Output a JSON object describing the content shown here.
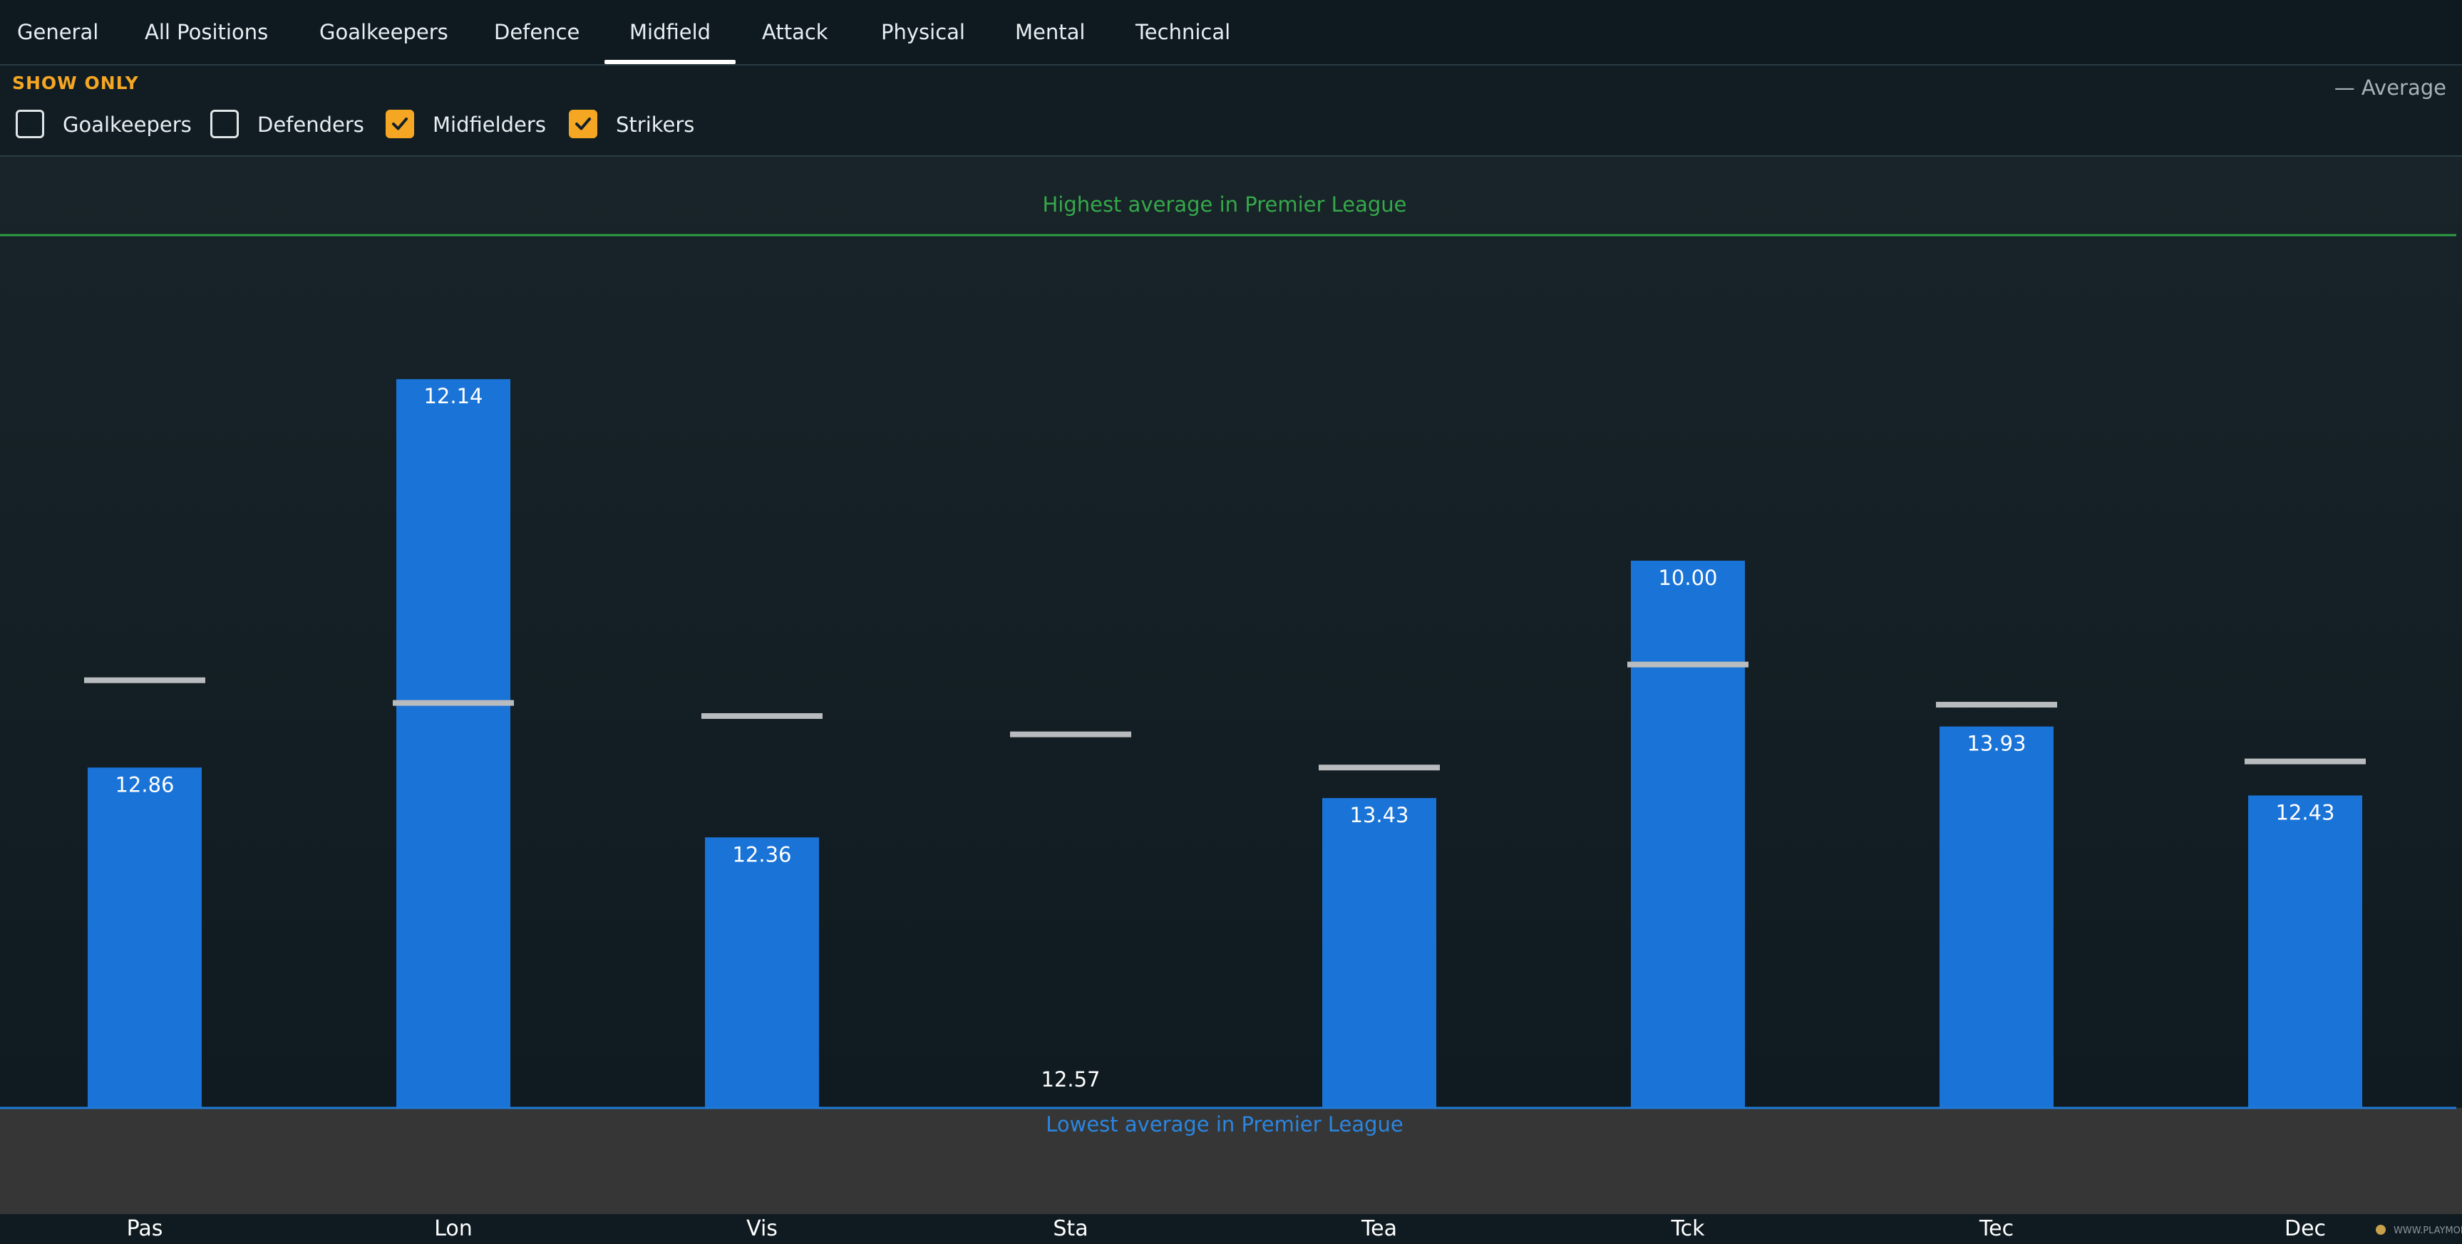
{
  "tabs": [
    {
      "label": "General"
    },
    {
      "label": "All Positions"
    },
    {
      "label": "Goalkeepers"
    },
    {
      "label": "Defence"
    },
    {
      "label": "Midfield",
      "active": true
    },
    {
      "label": "Attack"
    },
    {
      "label": "Physical"
    },
    {
      "label": "Mental"
    },
    {
      "label": "Technical"
    }
  ],
  "filters": {
    "heading": "SHOW ONLY",
    "options": [
      {
        "label": "Goalkeepers",
        "checked": false
      },
      {
        "label": "Defenders",
        "checked": false
      },
      {
        "label": "Midfielders",
        "checked": true
      },
      {
        "label": "Strikers",
        "checked": true
      }
    ],
    "legend": "— Average"
  },
  "colors": {
    "bar": "#1a73d6",
    "average_marker": "#b9bcbe",
    "highest_line": "#2f9e44",
    "lowest_line": "#1e7ad8",
    "checkbox_accent": "#f5a623"
  },
  "chart_data": {
    "type": "bar",
    "categories": [
      "Pas",
      "Lon",
      "Vis",
      "Sta",
      "Tea",
      "Tck",
      "Tec",
      "Dec"
    ],
    "values": [
      12.86,
      12.14,
      12.36,
      12.57,
      13.43,
      10.0,
      13.93,
      12.43
    ],
    "value_labels": [
      "12.86",
      "12.14",
      "12.36",
      "12.57",
      "13.43",
      "10.00",
      "13.93",
      "12.43"
    ],
    "bar_fill": [
      0.39,
      0.835,
      0.31,
      0.0,
      0.355,
      0.627,
      0.437,
      0.358
    ],
    "average_level": [
      0.49,
      0.464,
      0.449,
      0.428,
      0.39,
      0.508,
      0.462,
      0.397
    ],
    "highest_label": "Highest average in Premier League",
    "lowest_label": "Lowest average in Premier League"
  },
  "watermark": "WWW.PLAYMORE"
}
